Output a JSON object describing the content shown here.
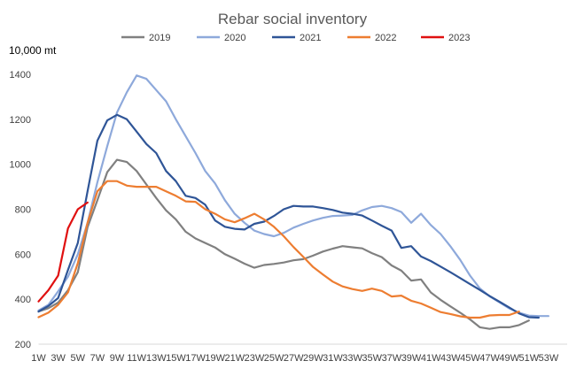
{
  "chart_data": {
    "type": "line",
    "title": "Rebar social inventory",
    "ylabel": "10,000 mt",
    "xlabel": "",
    "ylim": [
      200,
      1400
    ],
    "yticks": [
      200,
      400,
      600,
      800,
      1000,
      1200,
      1400
    ],
    "grid": false,
    "legend_position": "top",
    "x_range": [
      1,
      54
    ],
    "x_tick_labels": [
      "1W",
      "3W",
      "5W",
      "7W",
      "9W",
      "11W",
      "13W",
      "15W",
      "17W",
      "19W",
      "21W",
      "23W",
      "25W",
      "27W",
      "29W",
      "31W",
      "33W",
      "35W",
      "37W",
      "39W",
      "41W",
      "43W",
      "45W",
      "47W",
      "49W",
      "51W",
      "53W"
    ],
    "x_tick_weeks": [
      1,
      3,
      5,
      7,
      9,
      11,
      13,
      15,
      17,
      19,
      21,
      23,
      25,
      27,
      29,
      31,
      33,
      35,
      37,
      39,
      41,
      43,
      45,
      47,
      49,
      51,
      53
    ],
    "series": [
      {
        "name": "2019",
        "color": "#808080",
        "points": [
          [
            1,
            345
          ],
          [
            2,
            360
          ],
          [
            3,
            385
          ],
          [
            4,
            440
          ],
          [
            5,
            520
          ],
          [
            6,
            720
          ],
          [
            7,
            840
          ],
          [
            8,
            965
          ],
          [
            9,
            1020
          ],
          [
            10,
            1010
          ],
          [
            11,
            970
          ],
          [
            12,
            910
          ],
          [
            13,
            850
          ],
          [
            14,
            795
          ],
          [
            15,
            755
          ],
          [
            16,
            700
          ],
          [
            17,
            670
          ],
          [
            18,
            650
          ],
          [
            19,
            630
          ],
          [
            20,
            600
          ],
          [
            21,
            580
          ],
          [
            22,
            558
          ],
          [
            23,
            540
          ],
          [
            24,
            552
          ],
          [
            25,
            557
          ],
          [
            26,
            563
          ],
          [
            27,
            573
          ],
          [
            28,
            578
          ],
          [
            29,
            594
          ],
          [
            30,
            612
          ],
          [
            31,
            625
          ],
          [
            32,
            636
          ],
          [
            33,
            631
          ],
          [
            34,
            626
          ],
          [
            35,
            605
          ],
          [
            36,
            587
          ],
          [
            37,
            550
          ],
          [
            38,
            527
          ],
          [
            39,
            483
          ],
          [
            40,
            488
          ],
          [
            41,
            430
          ],
          [
            42,
            397
          ],
          [
            43,
            368
          ],
          [
            44,
            340
          ],
          [
            45,
            310
          ],
          [
            46,
            275
          ],
          [
            47,
            268
          ],
          [
            48,
            275
          ],
          [
            49,
            275
          ],
          [
            50,
            285
          ],
          [
            51,
            305
          ]
        ]
      },
      {
        "name": "2020",
        "color": "#8EA9DB",
        "points": [
          [
            1,
            350
          ],
          [
            2,
            375
          ],
          [
            3,
            435
          ],
          [
            4,
            500
          ],
          [
            5,
            600
          ],
          [
            6,
            740
          ],
          [
            7,
            920
          ],
          [
            8,
            1080
          ],
          [
            9,
            1230
          ],
          [
            10,
            1320
          ],
          [
            11,
            1395
          ],
          [
            12,
            1380
          ],
          [
            13,
            1330
          ],
          [
            14,
            1280
          ],
          [
            15,
            1200
          ],
          [
            16,
            1125
          ],
          [
            17,
            1050
          ],
          [
            18,
            970
          ],
          [
            19,
            915
          ],
          [
            20,
            840
          ],
          [
            21,
            780
          ],
          [
            22,
            740
          ],
          [
            23,
            705
          ],
          [
            24,
            690
          ],
          [
            25,
            680
          ],
          [
            26,
            695
          ],
          [
            27,
            718
          ],
          [
            28,
            735
          ],
          [
            29,
            750
          ],
          [
            30,
            762
          ],
          [
            31,
            770
          ],
          [
            32,
            772
          ],
          [
            33,
            775
          ],
          [
            34,
            795
          ],
          [
            35,
            810
          ],
          [
            36,
            815
          ],
          [
            37,
            805
          ],
          [
            38,
            788
          ],
          [
            39,
            740
          ],
          [
            40,
            780
          ],
          [
            41,
            730
          ],
          [
            42,
            690
          ],
          [
            43,
            635
          ],
          [
            44,
            575
          ],
          [
            45,
            505
          ],
          [
            46,
            448
          ],
          [
            47,
            413
          ],
          [
            48,
            386
          ],
          [
            49,
            359
          ],
          [
            50,
            340
          ],
          [
            51,
            327
          ],
          [
            52,
            325
          ],
          [
            53,
            325
          ]
        ]
      },
      {
        "name": "2021",
        "color": "#2F5597",
        "points": [
          [
            1,
            345
          ],
          [
            2,
            370
          ],
          [
            3,
            405
          ],
          [
            4,
            530
          ],
          [
            5,
            650
          ],
          [
            6,
            880
          ],
          [
            7,
            1105
          ],
          [
            8,
            1195
          ],
          [
            9,
            1220
          ],
          [
            10,
            1200
          ],
          [
            11,
            1145
          ],
          [
            12,
            1090
          ],
          [
            13,
            1050
          ],
          [
            14,
            970
          ],
          [
            15,
            925
          ],
          [
            16,
            860
          ],
          [
            17,
            850
          ],
          [
            18,
            820
          ],
          [
            19,
            750
          ],
          [
            20,
            722
          ],
          [
            21,
            713
          ],
          [
            22,
            710
          ],
          [
            23,
            735
          ],
          [
            24,
            745
          ],
          [
            25,
            770
          ],
          [
            26,
            800
          ],
          [
            27,
            815
          ],
          [
            28,
            812
          ],
          [
            29,
            812
          ],
          [
            30,
            805
          ],
          [
            31,
            797
          ],
          [
            32,
            785
          ],
          [
            33,
            780
          ],
          [
            34,
            772
          ],
          [
            35,
            750
          ],
          [
            36,
            727
          ],
          [
            37,
            705
          ],
          [
            38,
            628
          ],
          [
            39,
            636
          ],
          [
            40,
            590
          ],
          [
            41,
            570
          ],
          [
            42,
            545
          ],
          [
            43,
            520
          ],
          [
            44,
            494
          ],
          [
            45,
            467
          ],
          [
            46,
            441
          ],
          [
            47,
            414
          ],
          [
            48,
            389
          ],
          [
            49,
            363
          ],
          [
            50,
            337
          ],
          [
            51,
            320
          ],
          [
            52,
            318
          ]
        ]
      },
      {
        "name": "2022",
        "color": "#ED7D31",
        "points": [
          [
            1,
            320
          ],
          [
            2,
            340
          ],
          [
            3,
            375
          ],
          [
            4,
            430
          ],
          [
            5,
            560
          ],
          [
            6,
            740
          ],
          [
            7,
            880
          ],
          [
            8,
            925
          ],
          [
            9,
            925
          ],
          [
            10,
            905
          ],
          [
            11,
            900
          ],
          [
            12,
            900
          ],
          [
            13,
            900
          ],
          [
            14,
            880
          ],
          [
            15,
            860
          ],
          [
            16,
            835
          ],
          [
            17,
            833
          ],
          [
            18,
            800
          ],
          [
            19,
            780
          ],
          [
            20,
            755
          ],
          [
            21,
            742
          ],
          [
            22,
            760
          ],
          [
            23,
            780
          ],
          [
            24,
            755
          ],
          [
            25,
            722
          ],
          [
            26,
            680
          ],
          [
            27,
            632
          ],
          [
            28,
            588
          ],
          [
            29,
            543
          ],
          [
            30,
            510
          ],
          [
            31,
            478
          ],
          [
            32,
            457
          ],
          [
            33,
            445
          ],
          [
            34,
            437
          ],
          [
            35,
            447
          ],
          [
            36,
            437
          ],
          [
            37,
            412
          ],
          [
            38,
            416
          ],
          [
            39,
            393
          ],
          [
            40,
            381
          ],
          [
            41,
            362
          ],
          [
            42,
            343
          ],
          [
            43,
            334
          ],
          [
            44,
            324
          ],
          [
            45,
            318
          ],
          [
            46,
            318
          ],
          [
            47,
            328
          ],
          [
            48,
            330
          ],
          [
            49,
            330
          ],
          [
            50,
            345
          ]
        ]
      },
      {
        "name": "2023",
        "color": "#E01010",
        "points": [
          [
            1,
            390
          ],
          [
            2,
            440
          ],
          [
            3,
            505
          ],
          [
            4,
            715
          ],
          [
            5,
            800
          ],
          [
            6,
            830
          ]
        ]
      }
    ]
  }
}
